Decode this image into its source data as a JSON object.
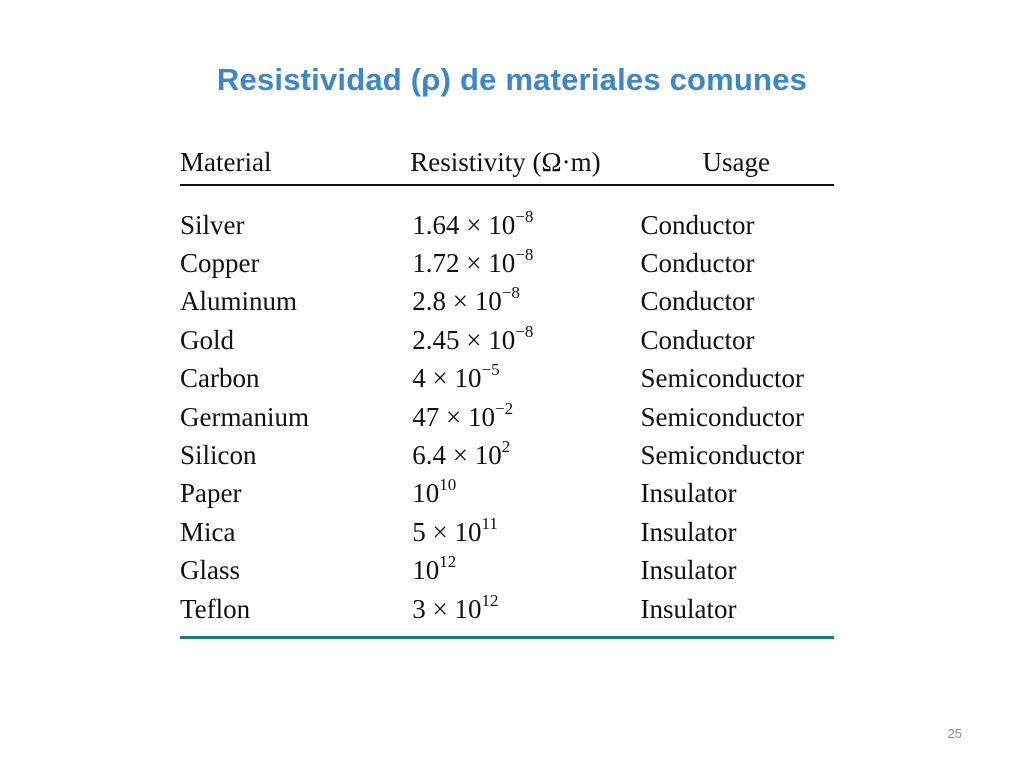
{
  "slide": {
    "title": "Resistividad  (ρ) de materiales comunes",
    "page_number": "25"
  },
  "table": {
    "headers": {
      "material": "Material",
      "resistivity": "Resistivity (Ω·m)",
      "usage": "Usage"
    },
    "rows": [
      {
        "material": "Silver",
        "mantissa": "1.64 × 10",
        "exponent": "−8",
        "usage": "Conductor"
      },
      {
        "material": "Copper",
        "mantissa": "1.72 × 10",
        "exponent": "−8",
        "usage": "Conductor"
      },
      {
        "material": "Aluminum",
        "mantissa": "2.8 × 10",
        "exponent": "−8",
        "usage": "Conductor"
      },
      {
        "material": "Gold",
        "mantissa": "2.45 × 10",
        "exponent": "−8",
        "usage": "Conductor"
      },
      {
        "material": "Carbon",
        "mantissa": "4 × 10",
        "exponent": "−5",
        "usage": "Semiconductor"
      },
      {
        "material": "Germanium",
        "mantissa": "47 × 10",
        "exponent": "−2",
        "usage": "Semiconductor"
      },
      {
        "material": "Silicon",
        "mantissa": "6.4 × 10",
        "exponent": "2",
        "usage": "Semiconductor"
      },
      {
        "material": "Paper",
        "mantissa": "10",
        "exponent": "10",
        "usage": "Insulator"
      },
      {
        "material": "Mica",
        "mantissa": "5 × 10",
        "exponent": "11",
        "usage": "Insulator"
      },
      {
        "material": "Glass",
        "mantissa": "10",
        "exponent": "12",
        "usage": "Insulator"
      },
      {
        "material": "Teflon",
        "mantissa": "3 × 10",
        "exponent": "12",
        "usage": "Insulator"
      }
    ]
  },
  "colors": {
    "title": "#3f86c4",
    "bottom_rule": "#1f7a7a",
    "text": "#111111"
  }
}
